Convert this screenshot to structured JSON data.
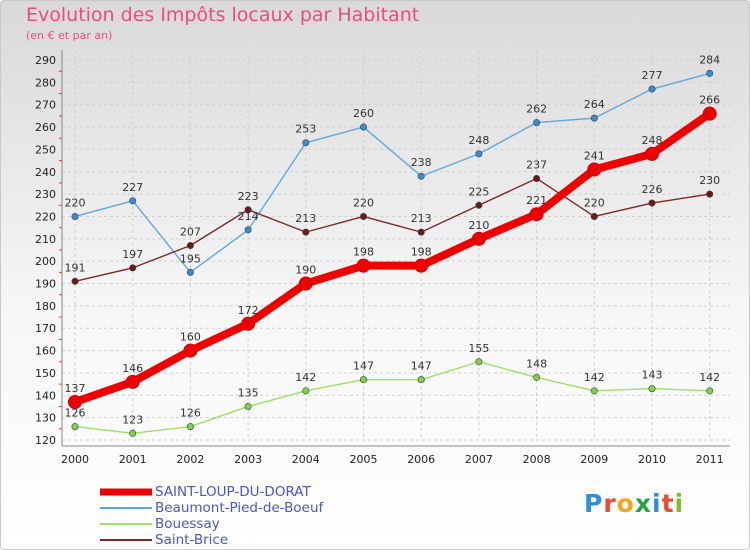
{
  "title": "Evolution des Impôts locaux par Habitant",
  "subtitle": "(en € et par an)",
  "logo": {
    "text": "Proxiti",
    "colors": [
      "#2f8fd6",
      "#e84d2f",
      "#f3a51c",
      "#2aa24a",
      "#2f8fd6",
      "#e84d2f",
      "#7fbf2a"
    ]
  },
  "chart_data": {
    "type": "line",
    "title": "Evolution des Impôts locaux par Habitant",
    "subtitle": "(en € et par an)",
    "categories": [
      "2000",
      "2001",
      "2002",
      "2003",
      "2004",
      "2005",
      "2006",
      "2007",
      "2008",
      "2009",
      "2010",
      "2011"
    ],
    "ylim": [
      120,
      290
    ],
    "yticks": [
      120,
      130,
      140,
      150,
      160,
      170,
      180,
      190,
      200,
      210,
      220,
      230,
      240,
      250,
      260,
      270,
      280,
      290
    ],
    "grid": true,
    "legend": "bottom-left",
    "series": [
      {
        "name": "SAINT-LOUP-DU-DORAT",
        "color": "#ee0000",
        "marker": "#ee0000",
        "bold": true,
        "values": [
          137,
          146,
          160,
          172,
          190,
          198,
          198,
          210,
          221,
          241,
          248,
          266
        ]
      },
      {
        "name": "Beaumont-Pied-de-Boeuf",
        "color": "#5fa8dc",
        "marker": "#3a8bd0",
        "bold": false,
        "values": [
          220,
          227,
          195,
          214,
          253,
          260,
          238,
          248,
          262,
          264,
          277,
          284
        ]
      },
      {
        "name": "Bouessay",
        "color": "#9ee06a",
        "marker": "#7fd14a",
        "bold": false,
        "values": [
          126,
          123,
          126,
          135,
          142,
          147,
          147,
          155,
          148,
          142,
          143,
          142
        ]
      },
      {
        "name": "Saint-Brice",
        "color": "#7a2a2a",
        "marker": "#6a1a1a",
        "bold": false,
        "values": [
          191,
          197,
          207,
          223,
          213,
          220,
          213,
          225,
          237,
          220,
          226,
          230
        ]
      }
    ]
  }
}
